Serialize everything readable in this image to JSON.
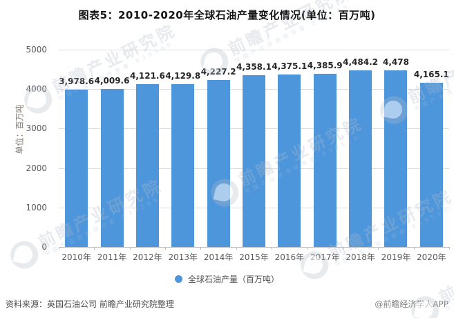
{
  "title": "图表5：2010-2020年全球石油产量变化情况(单位：百万吨)",
  "chart_data": {
    "type": "bar",
    "title": "图表5：2010-2020年全球石油产量变化情况(单位：百万吨)",
    "categories": [
      "2010年",
      "2011年",
      "2012年",
      "2013年",
      "2014年",
      "2015年",
      "2016年",
      "2017年",
      "2018年",
      "2019年",
      "2020年"
    ],
    "values": [
      3978.6,
      4009.6,
      4121.6,
      4129.8,
      4227.2,
      4358.1,
      4375.1,
      4385.9,
      4484.2,
      4478,
      4165.1
    ],
    "value_labels": [
      "3,978.6",
      "4,009.6",
      "4,121.6",
      "4,129.8",
      "4,227.2",
      "4,358.1",
      "4,375.1",
      "4,385.9",
      "4,484.2",
      "4,478",
      "4,165.1"
    ],
    "xlabel": "",
    "ylabel": "单位：百万吨",
    "ylim": [
      0,
      5000
    ],
    "yticks": [
      0,
      1000,
      2000,
      3000,
      4000,
      5000
    ],
    "grid": true,
    "legend": [
      "全球石油产量（百万吨）"
    ],
    "legend_position": "bottom",
    "bar_color": "#4E96DB"
  },
  "legend": {
    "label": "全球石油产量（百万吨）",
    "dot_color": "#4E96DB"
  },
  "footer": {
    "source": "资料来源：英国石油公司 前瞻产业研究院整理",
    "credit": "@前瞻经济学人APP"
  },
  "watermark": {
    "text": "前瞻产业研究院",
    "subtext": "中国产业咨询领导者 839599"
  }
}
